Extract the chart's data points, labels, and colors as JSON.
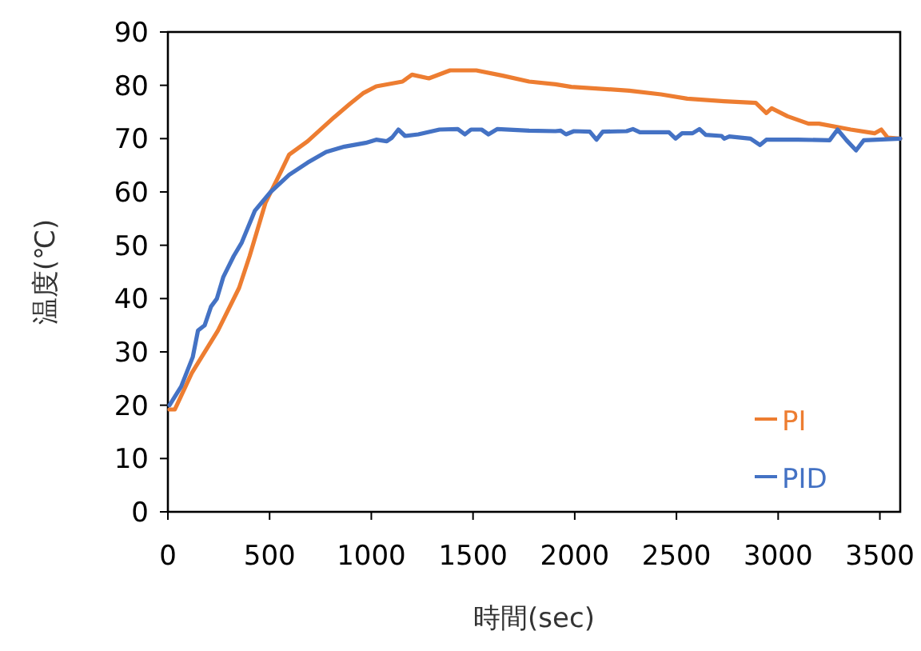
{
  "chart_data": {
    "type": "line",
    "xlabel": "時間(sec)",
    "ylabel": "温度(℃)",
    "xlim": [
      0,
      3600
    ],
    "ylim": [
      0,
      90
    ],
    "xticks": [
      0,
      500,
      1000,
      1500,
      2000,
      2500,
      3000,
      3500
    ],
    "yticks": [
      0,
      10,
      20,
      30,
      40,
      50,
      60,
      70,
      80,
      90
    ],
    "grid": false,
    "legend": "bottom right",
    "marker": "none",
    "line_style": "solid",
    "series": [
      {
        "name": "PI",
        "color": "#ed7d31",
        "x": [
          8,
          34,
          117,
          246,
          350,
          402,
          480,
          558,
          596,
          687,
          817,
          894,
          959,
          1024,
          1153,
          1200,
          1283,
          1387,
          1516,
          1646,
          1776,
          1905,
          1983,
          2268,
          2424,
          2553,
          2735,
          2890,
          2942,
          2968,
          3046,
          3149,
          3201,
          3357,
          3474,
          3507,
          3538,
          3600
        ],
        "values": [
          19.2,
          19.2,
          26,
          34,
          42,
          48,
          58,
          64,
          67,
          69.5,
          74,
          76.5,
          78.5,
          79.8,
          80.7,
          82,
          81.3,
          82.8,
          82.8,
          81.8,
          80.7,
          80.2,
          79.7,
          79,
          78.3,
          77.5,
          77,
          76.7,
          74.8,
          75.7,
          74.2,
          72.8,
          72.8,
          71.7,
          71,
          71.7,
          70.2,
          70
        ]
      },
      {
        "name": "PID",
        "color": "#4472c4",
        "x": [
          8,
          65,
          122,
          148,
          181,
          212,
          241,
          272,
          324,
          363,
          428,
          505,
          596,
          687,
          778,
          868,
          972,
          1024,
          1076,
          1102,
          1133,
          1166,
          1231,
          1335,
          1425,
          1460,
          1490,
          1542,
          1576,
          1620,
          1776,
          1905,
          1931,
          1957,
          1996,
          2074,
          2107,
          2138,
          2255,
          2286,
          2320,
          2463,
          2496,
          2527,
          2579,
          2613,
          2644,
          2722,
          2735,
          2760,
          2864,
          2911,
          2942,
          3097,
          3253,
          3292,
          3336,
          3383,
          3421,
          3600
        ],
        "values": [
          20,
          23.5,
          29,
          34,
          35,
          38.5,
          40,
          44,
          48,
          50.5,
          56.5,
          60,
          63.2,
          65.5,
          67.5,
          68.5,
          69.2,
          69.8,
          69.5,
          70.2,
          71.7,
          70.5,
          70.8,
          71.7,
          71.8,
          70.8,
          71.7,
          71.7,
          70.8,
          71.8,
          71.5,
          71.4,
          71.5,
          70.8,
          71.4,
          71.3,
          69.8,
          71.3,
          71.4,
          71.8,
          71.2,
          71.2,
          70,
          71,
          71,
          71.8,
          70.7,
          70.5,
          70,
          70.4,
          70,
          68.8,
          69.8,
          69.8,
          69.7,
          71.7,
          69.7,
          67.8,
          69.7,
          70
        ]
      }
    ]
  }
}
